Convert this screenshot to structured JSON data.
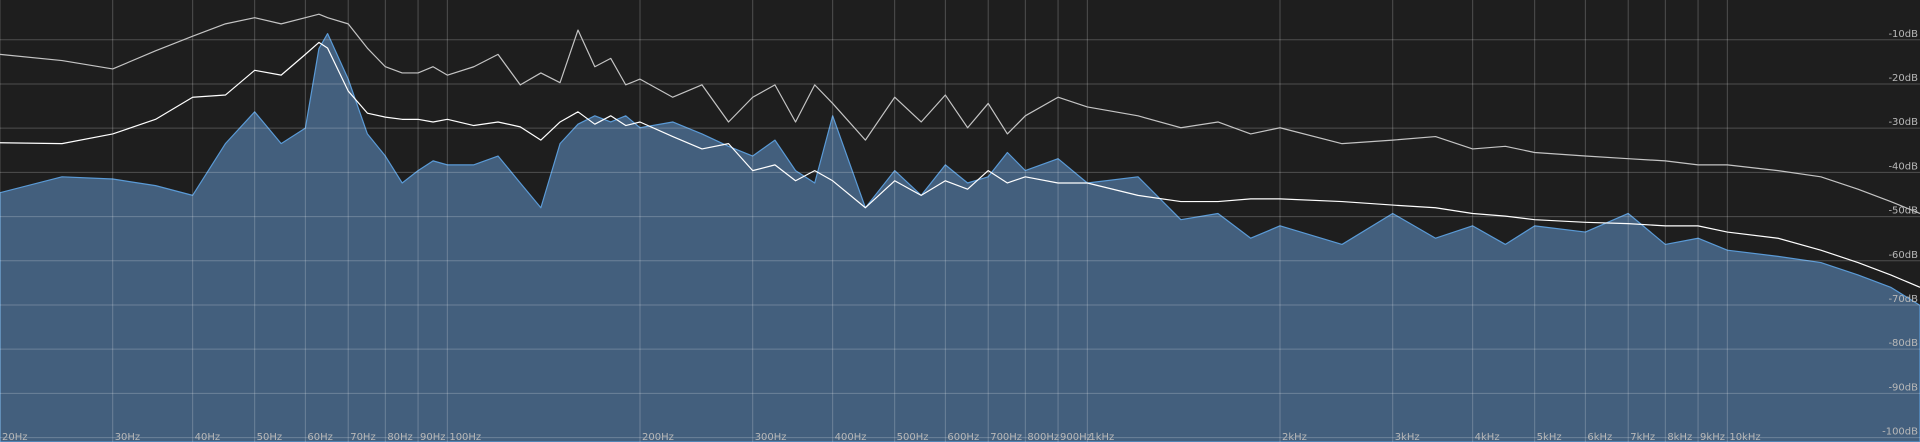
{
  "chart_data": {
    "type": "line",
    "x_scale": "log",
    "grid": true,
    "background": "#1e1e1e",
    "x": [
      20,
      25,
      30,
      35,
      40,
      45,
      50,
      55,
      60,
      63,
      65,
      70,
      75,
      80,
      85,
      90,
      95,
      100,
      110,
      120,
      130,
      140,
      150,
      160,
      170,
      180,
      190,
      200,
      225,
      250,
      275,
      300,
      325,
      350,
      375,
      400,
      450,
      500,
      550,
      600,
      650,
      700,
      750,
      800,
      900,
      1000,
      1200,
      1400,
      1600,
      1800,
      2000,
      2500,
      3000,
      3500,
      4000,
      4500,
      5000,
      6000,
      7000,
      8000,
      9000,
      10000,
      12000,
      14000,
      16000,
      18000,
      20000
    ],
    "series": [
      {
        "type": "area",
        "color": "#5a9ad6",
        "fill": "#435f7d",
        "values": [
          -44.6,
          -41,
          -41.5,
          -43,
          -45.2,
          -33.5,
          -26.3,
          -33.5,
          -30,
          -12,
          -8.6,
          -18.9,
          -31.3,
          -36.3,
          -42.4,
          -39.6,
          -37.4,
          -38.3,
          -38.3,
          -36.3,
          -42.4,
          -48,
          -33.5,
          -29.1,
          -27.2,
          -28.6,
          -27.2,
          -29.9,
          -28.6,
          -31.3,
          -34.1,
          -36.3,
          -32.7,
          -39.6,
          -42.4,
          -27.2,
          -48,
          -39.6,
          -45.2,
          -38.3,
          -42.4,
          -41,
          -35.5,
          -39.6,
          -36.9,
          -42.4,
          -41,
          -50.7,
          -49.3,
          -54.9,
          -52.1,
          -56.3,
          -49.3,
          -54.9,
          -52.1,
          -56.3,
          -52.1,
          -53.5,
          -49.3,
          -56.3,
          -54.9,
          -57.6,
          -59,
          -60.4,
          -63.2,
          -66,
          -70.1
        ]
      },
      {
        "type": "line",
        "color": "#c4c4c4",
        "values": [
          -13.3,
          -14.7,
          -16.6,
          -12.5,
          -9.2,
          -6.4,
          -5,
          -6.4,
          -5,
          -4.2,
          -5,
          -6.4,
          -11.9,
          -16.1,
          -17.5,
          -17.5,
          -16.1,
          -18,
          -16.1,
          -13.3,
          -20.2,
          -17.5,
          -19.7,
          -7.8,
          -16.1,
          -14.2,
          -20.2,
          -18.9,
          -23,
          -20.2,
          -28.6,
          -23,
          -20.2,
          -28.6,
          -20.2,
          -24.4,
          -32.7,
          -23,
          -28.6,
          -22.5,
          -29.9,
          -24.4,
          -31.3,
          -27.2,
          -23,
          -25.2,
          -27.2,
          -29.9,
          -28.6,
          -31.3,
          -29.9,
          -33.5,
          -32.7,
          -31.9,
          -34.7,
          -34.1,
          -35.5,
          -36.3,
          -36.9,
          -37.4,
          -38.3,
          -38.3,
          -39.6,
          -41,
          -43.8,
          -46.6,
          -49.3
        ]
      },
      {
        "type": "line",
        "color": "#ffffff",
        "values": [
          -33.3,
          -33.5,
          -31.3,
          -28,
          -23,
          -22.5,
          -16.9,
          -18,
          -13.3,
          -10.6,
          -11.9,
          -21.6,
          -26.6,
          -27.5,
          -28,
          -28,
          -28.6,
          -28,
          -29.4,
          -28.6,
          -29.7,
          -32.7,
          -28.6,
          -26.3,
          -29.1,
          -27.2,
          -29.4,
          -28.6,
          -31.9,
          -34.7,
          -33.5,
          -39.6,
          -38.3,
          -41.9,
          -39.6,
          -41.9,
          -48,
          -41.9,
          -45.2,
          -41.9,
          -43.8,
          -39.6,
          -42.4,
          -41,
          -42.4,
          -42.4,
          -45.2,
          -46.6,
          -46.6,
          -46,
          -46,
          -46.6,
          -47.4,
          -48,
          -49.3,
          -49.9,
          -50.7,
          -51.3,
          -51.6,
          -52.1,
          -52.1,
          -53.5,
          -54.9,
          -57.6,
          -60.4,
          -63.2,
          -66
        ]
      }
    ],
    "xlim": [
      20,
      20000
    ],
    "ylim": [
      -101,
      -1
    ],
    "xticks": [
      {
        "value": 20,
        "label": "20Hz"
      },
      {
        "value": 30,
        "label": "30Hz"
      },
      {
        "value": 40,
        "label": "40Hz"
      },
      {
        "value": 50,
        "label": "50Hz"
      },
      {
        "value": 60,
        "label": "60Hz"
      },
      {
        "value": 70,
        "label": "70Hz"
      },
      {
        "value": 80,
        "label": "80Hz"
      },
      {
        "value": 90,
        "label": "90Hz"
      },
      {
        "value": 100,
        "label": "100Hz"
      },
      {
        "value": 200,
        "label": "200Hz"
      },
      {
        "value": 300,
        "label": "300Hz"
      },
      {
        "value": 400,
        "label": "400Hz"
      },
      {
        "value": 500,
        "label": "500Hz"
      },
      {
        "value": 600,
        "label": "600Hz"
      },
      {
        "value": 700,
        "label": "700Hz"
      },
      {
        "value": 800,
        "label": "800Hz"
      },
      {
        "value": 900,
        "label": "900Hz"
      },
      {
        "value": 1000,
        "label": "1kHz"
      },
      {
        "value": 2000,
        "label": "2kHz"
      },
      {
        "value": 3000,
        "label": "3kHz"
      },
      {
        "value": 4000,
        "label": "4kHz"
      },
      {
        "value": 5000,
        "label": "5kHz"
      },
      {
        "value": 6000,
        "label": "6kHz"
      },
      {
        "value": 7000,
        "label": "7kHz"
      },
      {
        "value": 8000,
        "label": "8kHz"
      },
      {
        "value": 9000,
        "label": "9kHz"
      },
      {
        "value": 10000,
        "label": "10kHz"
      }
    ],
    "yticks": [
      {
        "value": -10,
        "label": "-10dB"
      },
      {
        "value": -20,
        "label": "-20dB"
      },
      {
        "value": -30,
        "label": "-30dB"
      },
      {
        "value": -40,
        "label": "-40dB"
      },
      {
        "value": -50,
        "label": "-50dB"
      },
      {
        "value": -60,
        "label": "-60dB"
      },
      {
        "value": -70,
        "label": "-70dB"
      },
      {
        "value": -80,
        "label": "-80dB"
      },
      {
        "value": -90,
        "label": "-90dB"
      },
      {
        "value": -100,
        "label": "-100dB"
      }
    ]
  }
}
